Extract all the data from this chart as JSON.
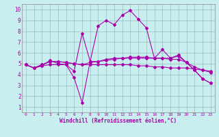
{
  "xlabel": "Windchill (Refroidissement éolien,°C)",
  "ylabel": "",
  "bg_color": "#c8eef0",
  "grid_color": "#9bbcbe",
  "line_color": "#aa00aa",
  "xlim": [
    -0.5,
    23.5
  ],
  "ylim": [
    0.5,
    10.5
  ],
  "xticks": [
    0,
    1,
    2,
    3,
    4,
    5,
    6,
    7,
    8,
    9,
    10,
    11,
    12,
    13,
    14,
    15,
    16,
    17,
    18,
    19,
    20,
    21,
    22,
    23
  ],
  "yticks": [
    1,
    2,
    3,
    4,
    5,
    6,
    7,
    8,
    9,
    10
  ],
  "series": [
    [
      4.9,
      4.6,
      4.8,
      5.3,
      5.0,
      4.9,
      4.3,
      7.8,
      5.2,
      8.5,
      9.0,
      8.6,
      9.5,
      9.9,
      9.1,
      8.3,
      5.5,
      6.3,
      5.5,
      5.8,
      5.1,
      4.4,
      3.6,
      3.2
    ],
    [
      4.9,
      4.6,
      4.8,
      4.9,
      4.9,
      4.9,
      3.7,
      1.4,
      5.2,
      5.2,
      5.4,
      5.5,
      5.5,
      5.5,
      5.5,
      5.5,
      5.5,
      5.5,
      5.5,
      5.7,
      5.1,
      4.4,
      3.6,
      3.2
    ],
    [
      4.9,
      4.6,
      4.9,
      5.2,
      5.2,
      5.1,
      5.0,
      4.9,
      4.9,
      4.9,
      4.9,
      4.9,
      4.9,
      4.9,
      4.8,
      4.8,
      4.7,
      4.7,
      4.6,
      4.6,
      4.6,
      4.5,
      4.4,
      4.3
    ],
    [
      4.9,
      4.6,
      4.9,
      5.2,
      5.2,
      5.1,
      5.0,
      4.9,
      5.1,
      5.2,
      5.3,
      5.4,
      5.5,
      5.6,
      5.6,
      5.6,
      5.5,
      5.5,
      5.4,
      5.4,
      5.1,
      4.7,
      4.4,
      4.2
    ]
  ]
}
